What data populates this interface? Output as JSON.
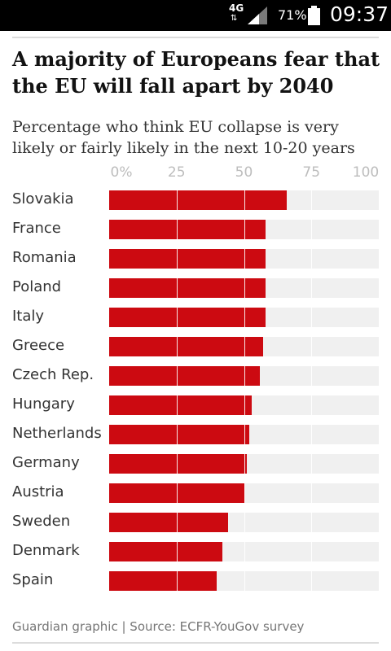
{
  "status_bar": {
    "network": "4G",
    "transfer": "⇅",
    "battery_percent": "71%",
    "time": "09:37"
  },
  "colors": {
    "bar": "#cc0a11",
    "track": "#f0f0f0",
    "title": "#121212"
  },
  "chart_data": {
    "type": "bar",
    "orientation": "horizontal",
    "title": "A majority of Europeans fear that the EU will fall apart by 2040",
    "subtitle": "Percentage who think EU collapse is very likely or fairly likely in the next 10-20 years",
    "xlabel": "",
    "ylabel": "",
    "xlim": [
      0,
      100
    ],
    "ticks": [
      "0%",
      "25",
      "50",
      "75",
      "100"
    ],
    "tick_values": [
      0,
      25,
      50,
      75,
      100
    ],
    "grid": true,
    "categories": [
      "Slovakia",
      "France",
      "Romania",
      "Poland",
      "Italy",
      "Greece",
      "Czech Rep.",
      "Hungary",
      "Netherlands",
      "Germany",
      "Austria",
      "Sweden",
      "Denmark",
      "Spain"
    ],
    "values": [
      66,
      58,
      58,
      58,
      58,
      57,
      56,
      53,
      52,
      51,
      50,
      44,
      42,
      40
    ],
    "source": "Guardian graphic | Source: ECFR-YouGov survey"
  }
}
